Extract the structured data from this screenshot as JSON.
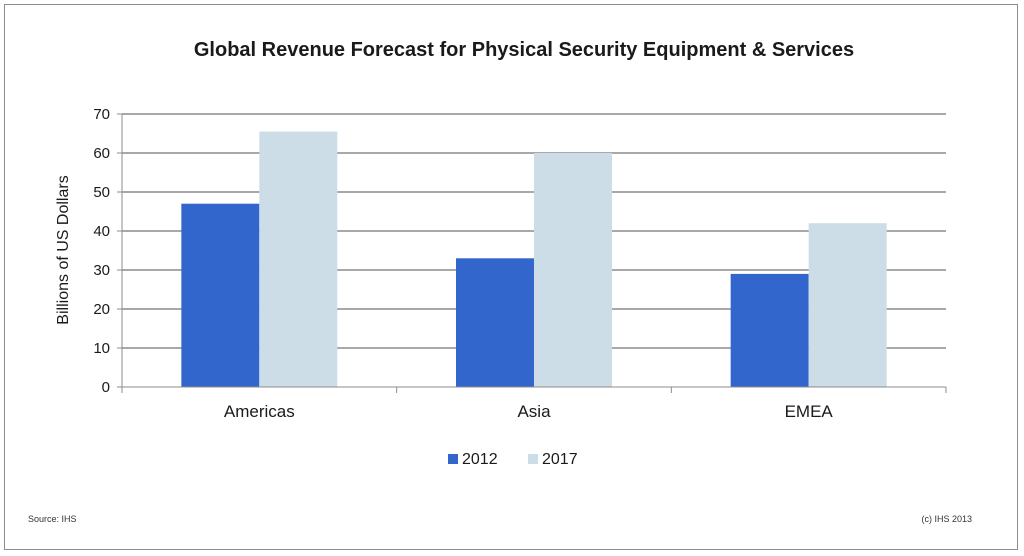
{
  "chart_data": {
    "type": "bar",
    "title": "Global Revenue Forecast for Physical Security Equipment & Services",
    "ylabel": "Billions of US Dollars",
    "xlabel": "",
    "categories": [
      "Americas",
      "Asia",
      "EMEA"
    ],
    "series": [
      {
        "name": "2012",
        "values": [
          47,
          33,
          29
        ],
        "color": "#3366cc"
      },
      {
        "name": "2017",
        "values": [
          65.5,
          60,
          42
        ],
        "color": "#cddde8"
      }
    ],
    "ylim": [
      0,
      70
    ],
    "yticks": [
      "0",
      "10",
      "20",
      "30",
      "40",
      "50",
      "60",
      "70"
    ],
    "grid": true,
    "legend_position": "bottom"
  },
  "footer": {
    "source": "Source:  IHS",
    "copyright": "(c) IHS 2013"
  }
}
